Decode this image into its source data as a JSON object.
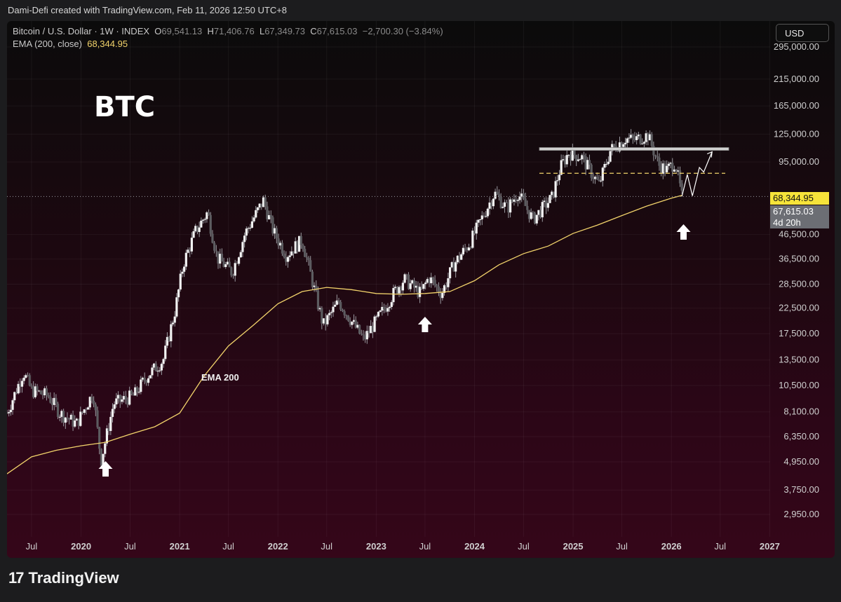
{
  "header": {
    "caption": "Dami-Defi created with TradingView.com, Feb 11, 2026 12:50 UTC+8"
  },
  "legend": {
    "symbol": "Bitcoin / U.S. Dollar · 1W · INDEX",
    "o_key": "O",
    "o": "69,541.13",
    "h_key": "H",
    "h": "71,406.76",
    "l_key": "L",
    "l": "67,349.73",
    "c_key": "C",
    "c": "67,615.03",
    "change": "−2,700.30 (−3.84%)",
    "ema_label": "EMA (200, close)",
    "ema_value": "68,344.95"
  },
  "currency_button": "USD",
  "annotations": {
    "title": "BTC",
    "ema_note": "EMA 200"
  },
  "price_tags": {
    "ema": "68,344.95",
    "last": "67,615.03",
    "countdown": "4d 20h"
  },
  "brand": {
    "logo": "17",
    "name": "TradingView"
  },
  "colors": {
    "ema": "#f2d36b",
    "candle": "#d9d9d9",
    "background_top": "#0b0b0b",
    "background_bottom": "#350619"
  },
  "chart_data": {
    "type": "line",
    "scale": "log",
    "ylim": [
      2700,
      400000
    ],
    "yticks": [
      2950,
      3750,
      4950,
      6350,
      8100,
      10500,
      13500,
      17500,
      22500,
      28500,
      36500,
      46500,
      95000,
      125000,
      165000,
      215000,
      295000
    ],
    "ytick_labels": [
      "2,950.00",
      "3,750.00",
      "4,950.00",
      "6,350.00",
      "8,100.00",
      "10,500.00",
      "13,500.00",
      "17,500.00",
      "22,500.00",
      "28,500.00",
      "36,500.00",
      "46,500.00",
      "95,000.00",
      "125,000.00",
      "165,000.00",
      "215,000.00",
      "295,000.00"
    ],
    "xticks": [
      "Jul",
      "2020",
      "Jul",
      "2021",
      "Jul",
      "2022",
      "Jul",
      "2023",
      "Jul",
      "2024",
      "Jul",
      "2025",
      "Jul",
      "2026",
      "Jul",
      "2027"
    ],
    "xtick_dates": [
      "2019-07-01",
      "2020-01-01",
      "2020-07-01",
      "2021-01-01",
      "2021-07-01",
      "2022-01-01",
      "2022-07-01",
      "2023-01-01",
      "2023-07-01",
      "2024-01-01",
      "2024-07-01",
      "2025-01-01",
      "2025-07-01",
      "2026-01-01",
      "2026-07-01",
      "2027-01-01"
    ],
    "series": [
      {
        "name": "EMA (200, close)",
        "points": [
          [
            "2019-04-01",
            4400
          ],
          [
            "2019-07-01",
            5200
          ],
          [
            "2019-10-01",
            5550
          ],
          [
            "2020-01-01",
            5800
          ],
          [
            "2020-04-01",
            6000
          ],
          [
            "2020-07-01",
            6500
          ],
          [
            "2020-10-01",
            7000
          ],
          [
            "2021-01-01",
            8000
          ],
          [
            "2021-04-01",
            11500
          ],
          [
            "2021-07-01",
            15500
          ],
          [
            "2021-10-01",
            19000
          ],
          [
            "2022-01-01",
            23500
          ],
          [
            "2022-04-01",
            26500
          ],
          [
            "2022-07-01",
            27600
          ],
          [
            "2022-10-01",
            27000
          ],
          [
            "2023-01-01",
            26000
          ],
          [
            "2023-04-01",
            25800
          ],
          [
            "2023-07-01",
            26000
          ],
          [
            "2023-10-01",
            26500
          ],
          [
            "2024-01-01",
            29500
          ],
          [
            "2024-04-01",
            34500
          ],
          [
            "2024-07-01",
            38500
          ],
          [
            "2024-10-01",
            41500
          ],
          [
            "2025-01-01",
            47000
          ],
          [
            "2025-04-01",
            51000
          ],
          [
            "2025-07-01",
            56000
          ],
          [
            "2025-10-01",
            61500
          ],
          [
            "2026-01-01",
            66500
          ],
          [
            "2026-02-09",
            68345
          ]
        ]
      },
      {
        "name": "Bitcoin / U.S. Dollar",
        "points": [
          [
            "2019-04-01",
            8000
          ],
          [
            "2019-06-01",
            12000
          ],
          [
            "2019-07-01",
            10000
          ],
          [
            "2019-09-01",
            9500
          ],
          [
            "2019-10-15",
            8000
          ],
          [
            "2019-12-15",
            7200
          ],
          [
            "2020-02-15",
            9800
          ],
          [
            "2020-03-15",
            5000
          ],
          [
            "2020-05-01",
            8800
          ],
          [
            "2020-07-15",
            9500
          ],
          [
            "2020-09-01",
            11500
          ],
          [
            "2020-11-01",
            13500
          ],
          [
            "2020-12-15",
            22000
          ],
          [
            "2021-01-15",
            35000
          ],
          [
            "2021-03-01",
            48000
          ],
          [
            "2021-04-15",
            58000
          ],
          [
            "2021-05-20",
            37000
          ],
          [
            "2021-07-15",
            32000
          ],
          [
            "2021-09-01",
            47000
          ],
          [
            "2021-11-08",
            65000
          ],
          [
            "2021-12-15",
            48000
          ],
          [
            "2022-02-01",
            38000
          ],
          [
            "2022-04-01",
            44000
          ],
          [
            "2022-06-18",
            19000
          ],
          [
            "2022-08-15",
            24000
          ],
          [
            "2022-11-15",
            16500
          ],
          [
            "2023-01-15",
            21000
          ],
          [
            "2023-03-15",
            27000
          ],
          [
            "2023-04-15",
            30000
          ],
          [
            "2023-06-15",
            26000
          ],
          [
            "2023-07-15",
            30500
          ],
          [
            "2023-09-01",
            26000
          ],
          [
            "2023-10-15",
            34500
          ],
          [
            "2023-12-15",
            43000
          ],
          [
            "2024-03-15",
            70000
          ],
          [
            "2024-05-01",
            60000
          ],
          [
            "2024-06-10",
            70000
          ],
          [
            "2024-08-05",
            54000
          ],
          [
            "2024-10-15",
            67000
          ],
          [
            "2024-11-15",
            90000
          ],
          [
            "2024-12-15",
            104000
          ],
          [
            "2025-02-01",
            100000
          ],
          [
            "2025-04-07",
            76000
          ],
          [
            "2025-05-20",
            107000
          ],
          [
            "2025-07-14",
            120000
          ],
          [
            "2025-08-15",
            118000
          ],
          [
            "2025-10-06",
            124000
          ],
          [
            "2025-11-15",
            92000
          ],
          [
            "2025-12-15",
            88000
          ],
          [
            "2026-01-15",
            95000
          ],
          [
            "2026-02-09",
            67615
          ]
        ]
      }
    ],
    "levels": [
      {
        "kind": "resistance",
        "value": 108000
      },
      {
        "kind": "dashed",
        "value": 85000
      }
    ],
    "projection": [
      [
        "2026-02-09",
        67615
      ],
      [
        "2026-03-01",
        84000
      ],
      [
        "2026-03-20",
        68000
      ],
      [
        "2026-04-15",
        90000
      ],
      [
        "2026-05-01",
        86000
      ],
      [
        "2026-06-01",
        105000
      ]
    ],
    "markers": [
      {
        "kind": "up-arrow",
        "date": "2020-04-01"
      },
      {
        "kind": "up-arrow",
        "date": "2023-07-01"
      },
      {
        "kind": "up-arrow",
        "date": "2026-02-15"
      }
    ]
  }
}
